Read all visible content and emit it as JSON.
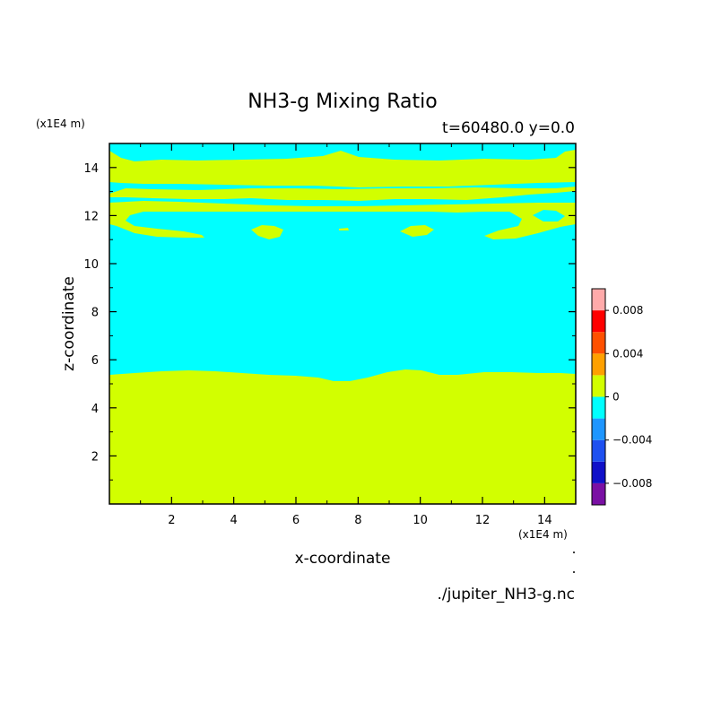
{
  "chart_data": {
    "type": "heatmap",
    "title": "NH3-g Mixing Ratio",
    "subtitle": "t=60480.0 y=0.0",
    "xlabel": "x-coordinate",
    "ylabel": "z-coordinate",
    "x_unit": "(x1E4 m)",
    "z_unit": "(x1E4 m)",
    "xlim": [
      0.0,
      15.0
    ],
    "ylim": [
      0.0,
      15.0
    ],
    "x_ticks": [
      "2",
      "4",
      "6",
      "8",
      "10",
      "12",
      "14"
    ],
    "y_ticks": [
      "2",
      "4",
      "6",
      "8",
      "10",
      "12",
      "14"
    ],
    "x_tick_values": [
      2,
      4,
      6,
      8,
      10,
      12,
      14
    ],
    "y_tick_values": [
      2,
      4,
      6,
      8,
      10,
      12,
      14
    ],
    "source": "./jupiter_NH3-g.nc",
    "colorbar": {
      "levels": [
        -0.01,
        -0.008,
        -0.006,
        -0.004,
        -0.002,
        0,
        0.002,
        0.004,
        0.006,
        0.008,
        0.01
      ],
      "colors": [
        "#7a10a4",
        "#1010c8",
        "#1e50f0",
        "#1e96ff",
        "#00ffff",
        "#d2ff00",
        "#ffa000",
        "#ff5000",
        "#ff0000",
        "#ffaaaa"
      ],
      "tick_values": [
        -0.008,
        -0.004,
        0,
        0.004,
        0.008
      ],
      "tick_labels": [
        "−0.008",
        "−0.004",
        "0",
        "0.004",
        "0.008"
      ]
    },
    "fields": {
      "background_level": 0.001,
      "regions": [
        {
          "name": "lower-layer",
          "level": 0.001,
          "z_top": 5.4
        },
        {
          "name": "clear-band",
          "level": -0.001
        },
        {
          "name": "upper-band-1",
          "level": 0.001,
          "z_range": [
            11.1,
            12.3
          ]
        },
        {
          "name": "upper-band-2",
          "level": 0.001,
          "z_range": [
            12.9,
            13.4
          ]
        },
        {
          "name": "upper-band-3",
          "level": 0.001,
          "z_range": [
            13.7,
            14.5
          ]
        }
      ]
    }
  }
}
